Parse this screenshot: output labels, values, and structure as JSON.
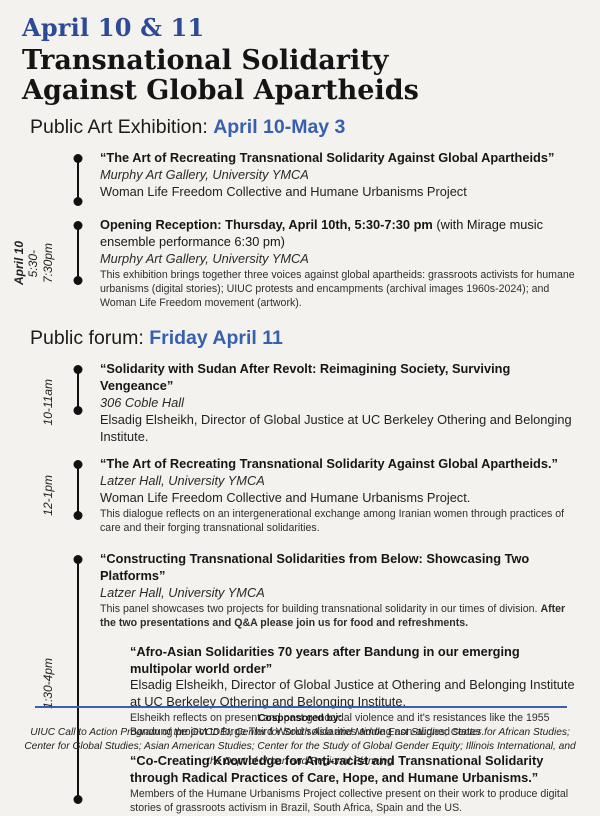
{
  "header": {
    "dates": "April 10 & 11",
    "title_line1": "Transnational Solidarity",
    "title_line2": "Against Global Apartheids"
  },
  "accent_colors": {
    "serif_blue": "#2d4a96",
    "sans_blue": "#3760ae",
    "background": "#f4f2ee"
  },
  "exhibition": {
    "heading_label": "Public Art Exhibition: ",
    "heading_dates": "April 10-May 3",
    "event1": {
      "title": "“The Art of Recreating Transnational Solidarity Against Global Apartheids”",
      "venue": "Murphy Art Gallery, University YMCA",
      "presenter": "Woman Life Freedom Collective and Humane Urbanisms Project"
    },
    "event2": {
      "side_label_date": "April 10",
      "side_label_time1": "5:30-",
      "side_label_time2": "7:30pm",
      "title_bold": "Opening Reception: Thursday, April 10th, 5:30-7:30 pm",
      "title_rest": " (with Mirage music ensemble performance 6:30 pm)",
      "venue": "Murphy Art Gallery, University YMCA",
      "description": "This exhibition brings together three voices against global apartheids: grassroots activists for humane urbanisms (digital stories); UIUC protests and encampments (archival images 1960s-2024); and Woman Life Freedom movement (artwork)."
    }
  },
  "forum": {
    "heading_label": "Public forum: ",
    "heading_dates": "Friday April 11",
    "event1": {
      "time": "10-11am",
      "title": "“Solidarity with Sudan After Revolt: Reimagining Society, Surviving Vengeance”",
      "venue": "306 Coble Hall",
      "presenter": "Elsadig Elsheikh, Director of Global Justice at UC Berkeley Othering and Belonging Institute."
    },
    "event2": {
      "time": "12-1pm",
      "title": "“The Art of Recreating Transnational Solidarity Against Global Apartheids.”",
      "venue": "Latzer Hall, University YMCA",
      "presenter": "Woman Life Freedom Collective and Humane Urbanisms Project.",
      "description": "This dialogue reflects on an intergenerational exchange among Iranian women through practices of care and their forging transnational solidarities."
    },
    "event3": {
      "time": "1:30-4pm",
      "title": "“Constructing Transnational Solidarities from Below: Showcasing Two Platforms”",
      "venue": "Latzer Hall, University YMCA",
      "description_regular": "This panel showcases two projects for building transnational solidarity in our times of division. ",
      "description_bold": "After the two presentations and Q&A please join us for food and refreshments.",
      "sub1": {
        "title": "“Afro-Asian Solidarities 70 years after Bandung in our emerging multipolar world order”",
        "presenter": "Elsadig Elsheikh, Director of Global Justice at Othering and Belonging Institute at UC Berkeley Othering and Belonging Institute.",
        "description": "Elsheikh reflects on present and past genocidal violence and it's resistances like the 1955 Bandung project to forge Third World solidarities among non-aligned states."
      },
      "sub2": {
        "title": "“Co-Creating Knowledge for Anti-racist and Transnational Solidarity through Radical Practices of Care, Hope, and Humane Urbanisms.”",
        "description": "Members of the Humane Urbanisms Project collective present on their work to produce digital stories of grassroots activism in Brazil, South Africa, Spain and the US."
      }
    }
  },
  "footer": {
    "label": "Cosponsored by:",
    "credits": "UIUC Call to Action Program of the OVCDEI; Center for South Asia and Middle East Studies; Center for African Studies; Center for Global Studies; Asian American Studies; Center for the Study of Global Gender Equity; Illinois International, and the Dept of Urban and Regional Planning"
  }
}
